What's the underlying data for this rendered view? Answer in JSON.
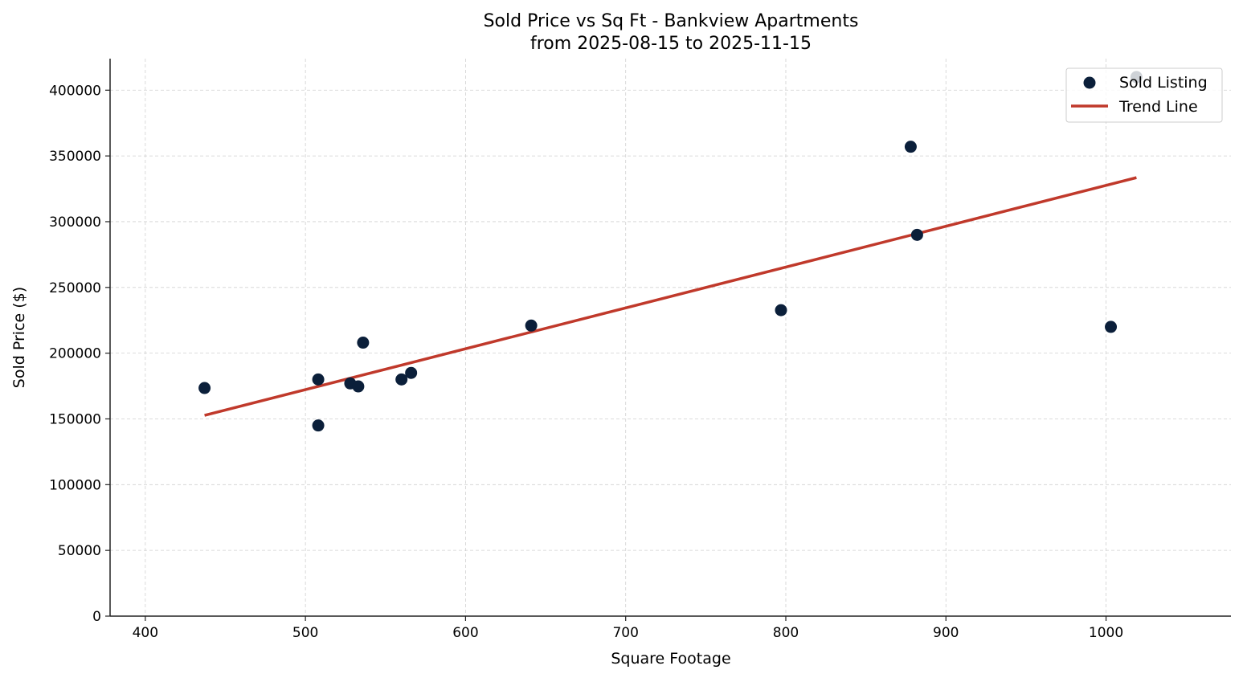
{
  "chart_data": {
    "type": "scatter",
    "title": "Sold Price vs Sq Ft - Bankview Apartments",
    "subtitle": "from 2025-08-15 to 2025-11-15",
    "xlabel": "Square Footage",
    "ylabel": "Sold Price ($)",
    "xlim": [
      378,
      1078
    ],
    "ylim": [
      0,
      424000
    ],
    "xticks": [
      400,
      500,
      600,
      700,
      800,
      900,
      1000
    ],
    "yticks": [
      0,
      50000,
      100000,
      150000,
      200000,
      250000,
      300000,
      350000,
      400000
    ],
    "grid": true,
    "legend_position": "top-right",
    "series": [
      {
        "name": "Sold Listing",
        "kind": "scatter",
        "color": "#0b1f3a",
        "points": [
          {
            "x": 437,
            "y": 173500
          },
          {
            "x": 508,
            "y": 180000
          },
          {
            "x": 508,
            "y": 145000
          },
          {
            "x": 528,
            "y": 177000
          },
          {
            "x": 533,
            "y": 174700
          },
          {
            "x": 536,
            "y": 208000
          },
          {
            "x": 560,
            "y": 180000
          },
          {
            "x": 566,
            "y": 185000
          },
          {
            "x": 641,
            "y": 221000
          },
          {
            "x": 797,
            "y": 232700
          },
          {
            "x": 878,
            "y": 357000
          },
          {
            "x": 882,
            "y": 290000
          },
          {
            "x": 1003,
            "y": 220000
          },
          {
            "x": 1019,
            "y": 410000
          }
        ]
      },
      {
        "name": "Trend Line",
        "kind": "line",
        "color": "#c0392b",
        "points": [
          {
            "x": 437,
            "y": 152700
          },
          {
            "x": 1019,
            "y": 333500
          }
        ]
      }
    ]
  }
}
